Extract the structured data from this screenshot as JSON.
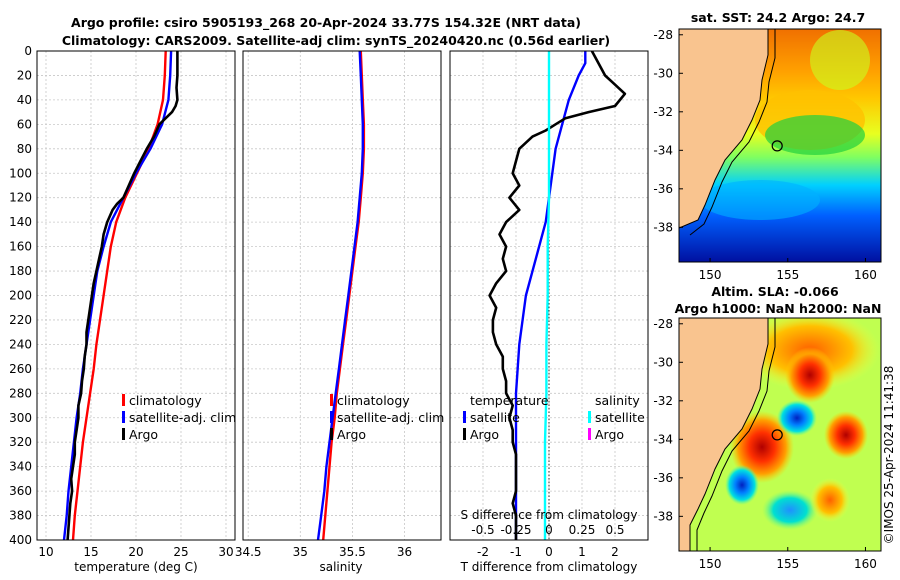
{
  "titles": {
    "line1": "Argo profile: csiro 5905193_268 20-Apr-2024 33.77S 154.32E (NRT data)",
    "line2": "Climatology: CARS2009. Satellite-adj clim: synTS_20240420.nc (0.56d earlier)",
    "sst_map": "sat. SST: 24.2 Argo: 24.7",
    "sla_map_line1": "Altim. SLA: -0.066",
    "sla_map_line2": "Argo h1000: NaN h2000: NaN",
    "credit": "©IMOS 25-Apr-2024 11:41:38"
  },
  "colors": {
    "climatology": "#ff0000",
    "satellite": "#0000ff",
    "argo": "#000000",
    "sal_satellite": "#00ffff",
    "sal_argo": "#ff00ff",
    "land": "#f9c48f"
  },
  "chart_data": [
    {
      "type": "line",
      "id": "temperature",
      "xlabel": "temperature (deg C)",
      "ylabel": "",
      "xlim": [
        9,
        31
      ],
      "ylim": [
        400,
        0
      ],
      "xticks": [
        "10",
        "15",
        "20",
        "25",
        "30"
      ],
      "yticks": [
        "0",
        "20",
        "40",
        "60",
        "80",
        "100",
        "120",
        "140",
        "160",
        "180",
        "200",
        "220",
        "240",
        "260",
        "280",
        "300",
        "320",
        "340",
        "360",
        "380",
        "400"
      ],
      "grid": true,
      "legend": [
        "climatology",
        "satellite-adj. clim",
        "Argo"
      ],
      "series": [
        {
          "name": "climatology",
          "color": "#ff0000",
          "depth": [
            0,
            20,
            40,
            60,
            80,
            100,
            120,
            140,
            160,
            180,
            200,
            220,
            240,
            260,
            280,
            300,
            320,
            340,
            360,
            380,
            400
          ],
          "values": [
            23.3,
            23.2,
            23.0,
            22.4,
            21.4,
            20.1,
            18.8,
            17.8,
            17.2,
            16.8,
            16.4,
            16.0,
            15.6,
            15.3,
            14.9,
            14.5,
            14.1,
            13.8,
            13.5,
            13.2,
            13.0
          ]
        },
        {
          "name": "satellite-adj. clim",
          "color": "#0000ff",
          "depth": [
            0,
            20,
            40,
            60,
            80,
            100,
            120,
            140,
            160,
            180,
            200,
            220,
            240,
            260,
            280,
            300,
            320,
            340,
            360,
            380,
            400
          ],
          "values": [
            23.9,
            23.8,
            23.6,
            22.9,
            21.6,
            20.0,
            18.6,
            17.2,
            16.4,
            15.7,
            15.3,
            14.9,
            14.5,
            14.1,
            13.8,
            13.4,
            13.1,
            12.8,
            12.5,
            12.3,
            12.0
          ]
        },
        {
          "name": "Argo",
          "color": "#000000",
          "depth": [
            0,
            10,
            20,
            30,
            40,
            45,
            50,
            55,
            60,
            65,
            70,
            80,
            90,
            100,
            110,
            120,
            125,
            130,
            140,
            150,
            160,
            170,
            180,
            190,
            200,
            210,
            220,
            230,
            240,
            250,
            260,
            270,
            280,
            290,
            300,
            310,
            320,
            330,
            340,
            350,
            360,
            370,
            380,
            390,
            400
          ],
          "values": [
            24.6,
            24.6,
            24.6,
            24.5,
            24.6,
            24.4,
            24.0,
            23.3,
            22.6,
            22.3,
            22.0,
            21.2,
            20.5,
            19.8,
            19.2,
            18.6,
            17.9,
            17.4,
            16.8,
            16.4,
            16.2,
            15.9,
            15.6,
            15.3,
            15.1,
            14.9,
            14.7,
            14.5,
            14.5,
            14.3,
            14.2,
            14.0,
            13.9,
            13.6,
            13.6,
            13.4,
            13.2,
            13.2,
            13.0,
            12.8,
            12.9,
            12.7,
            12.6,
            12.5,
            12.4
          ]
        }
      ]
    },
    {
      "type": "line",
      "id": "salinity",
      "xlabel": "salinity",
      "xlim": [
        34.45,
        36.35
      ],
      "ylim": [
        400,
        0
      ],
      "xticks": [
        "34.5",
        "35",
        "35.5",
        "36"
      ],
      "grid": true,
      "legend": [
        "climatology",
        "satellite-adj. clim",
        "Argo"
      ],
      "series": [
        {
          "name": "climatology",
          "color": "#ff0000",
          "depth": [
            0,
            20,
            40,
            60,
            80,
            100,
            120,
            140,
            160,
            180,
            200,
            220,
            240,
            260,
            280,
            300,
            320,
            340,
            360,
            380,
            400
          ],
          "values": [
            35.58,
            35.59,
            35.6,
            35.61,
            35.61,
            35.6,
            35.58,
            35.56,
            35.53,
            35.5,
            35.47,
            35.44,
            35.41,
            35.38,
            35.35,
            35.33,
            35.3,
            35.28,
            35.26,
            35.24,
            35.22
          ]
        },
        {
          "name": "satellite-adj. clim",
          "color": "#0000ff",
          "depth": [
            0,
            20,
            40,
            60,
            80,
            100,
            120,
            140,
            160,
            180,
            200,
            220,
            240,
            260,
            280,
            300,
            320,
            340,
            360,
            380,
            400
          ],
          "values": [
            35.57,
            35.58,
            35.59,
            35.6,
            35.6,
            35.59,
            35.57,
            35.55,
            35.52,
            35.49,
            35.46,
            35.43,
            35.4,
            35.37,
            35.34,
            35.31,
            35.28,
            35.25,
            35.23,
            35.2,
            35.17
          ]
        }
      ]
    },
    {
      "type": "line",
      "id": "difference",
      "xlabel": "T difference from climatology",
      "xlabel_top": "S difference from climatology",
      "xlim": [
        -3,
        3
      ],
      "xlim_top": [
        -0.75,
        0.75
      ],
      "ylim": [
        400,
        0
      ],
      "xticks": [
        "-2",
        "-1",
        "0",
        "1",
        "2"
      ],
      "xticks_top": [
        "-0.5",
        "-0.25",
        "0",
        "0.25",
        "0.5"
      ],
      "grid": true,
      "legend_temperature": {
        "heading": "temperature",
        "items": [
          "satellite",
          "Argo"
        ]
      },
      "legend_salinity": {
        "heading": "salinity",
        "items": [
          "satellite",
          "Argo"
        ]
      },
      "series": [
        {
          "name": "temperature satellite",
          "color": "#0000ff",
          "depth": [
            0,
            10,
            20,
            40,
            60,
            80,
            100,
            120,
            140,
            160,
            180,
            200,
            240,
            280,
            320,
            360,
            400
          ],
          "values": [
            1.1,
            1.1,
            0.9,
            0.6,
            0.4,
            0.2,
            0.1,
            0.0,
            -0.1,
            -0.3,
            -0.5,
            -0.7,
            -0.9,
            -1.0,
            -1.0,
            -1.0,
            -1.0
          ]
        },
        {
          "name": "temperature Argo",
          "color": "#000000",
          "depth": [
            0,
            10,
            20,
            25,
            35,
            45,
            50,
            55,
            60,
            65,
            70,
            80,
            90,
            100,
            110,
            120,
            130,
            140,
            150,
            160,
            170,
            180,
            190,
            200,
            210,
            220,
            230,
            240,
            250,
            260,
            270,
            280,
            290,
            300,
            310,
            320,
            330,
            340,
            350,
            360,
            370,
            380,
            390,
            400
          ],
          "values": [
            1.3,
            1.5,
            1.7,
            1.9,
            2.3,
            2.0,
            1.2,
            0.5,
            0.2,
            -0.1,
            -0.5,
            -0.9,
            -1.0,
            -1.1,
            -0.9,
            -1.2,
            -0.9,
            -1.3,
            -1.5,
            -1.3,
            -1.4,
            -1.3,
            -1.6,
            -1.8,
            -1.6,
            -1.7,
            -1.7,
            -1.6,
            -1.4,
            -1.4,
            -1.3,
            -1.3,
            -1.1,
            -1.2,
            -1.1,
            -1.1,
            -1.0,
            -1.0,
            -1.0,
            -1.0,
            -1.1,
            -1.0,
            -1.0,
            -1.0
          ]
        },
        {
          "name": "salinity satellite",
          "color": "#00ffff",
          "axis": "top",
          "depth": [
            0,
            40,
            80,
            120,
            160,
            200,
            240,
            280,
            320,
            360,
            400
          ],
          "values": [
            0.0,
            0.0,
            0.0,
            0.0,
            -0.01,
            -0.01,
            -0.02,
            -0.02,
            -0.03,
            -0.03,
            -0.03
          ]
        }
      ]
    },
    {
      "type": "heatmap",
      "id": "sst_map",
      "xticks": [
        "150",
        "155",
        "160"
      ],
      "yticks": [
        "-28",
        "-30",
        "-32",
        "-34",
        "-36",
        "-38"
      ],
      "xlim": [
        148,
        161
      ],
      "ylim": [
        -39.8,
        -27.7
      ],
      "argo_position": [
        154.32,
        -33.77
      ]
    },
    {
      "type": "heatmap",
      "id": "sla_map",
      "xticks": [
        "150",
        "155",
        "160"
      ],
      "yticks": [
        "-28",
        "-30",
        "-32",
        "-34",
        "-36",
        "-38"
      ],
      "xlim": [
        148,
        161
      ],
      "ylim": [
        -39.8,
        -27.7
      ],
      "argo_position": [
        154.32,
        -33.77
      ]
    }
  ]
}
